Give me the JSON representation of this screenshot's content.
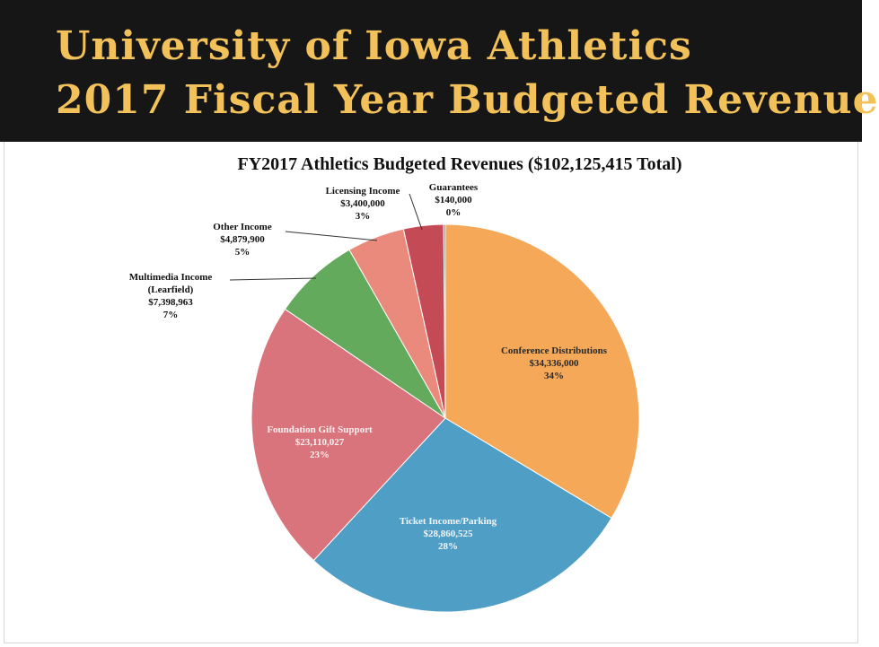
{
  "banner": {
    "line1": "University of Iowa Athletics",
    "line2": "2017 Fiscal Year Budgeted Revenue"
  },
  "chart_data": {
    "type": "pie",
    "title": "FY2017 Athletics Budgeted Revenues ($102,125,415 Total)",
    "slices": [
      {
        "label": "Conference Distributions",
        "amount": "$34,336,000",
        "percent": "34%",
        "value": 34336000,
        "color": "#f5a857",
        "placement": "inside"
      },
      {
        "label": "Ticket Income/Parking",
        "amount": "$28,860,525",
        "percent": "28%",
        "value": 28860525,
        "color": "#4f9ec6",
        "placement": "inside"
      },
      {
        "label": "Foundation Gift Support",
        "amount": "$23,110,027",
        "percent": "23%",
        "value": 23110027,
        "color": "#d9747c",
        "placement": "inside"
      },
      {
        "label": "Multimedia Income (Learfield)",
        "amount": "$7,398,963",
        "percent": "7%",
        "value": 7398963,
        "color": "#63aa5c",
        "placement": "outside"
      },
      {
        "label": "Other Income",
        "amount": "$4,879,900",
        "percent": "5%",
        "value": 4879900,
        "color": "#ea8a7c",
        "placement": "outside"
      },
      {
        "label": "Licensing Income",
        "amount": "$3,400,000",
        "percent": "3%",
        "value": 3400000,
        "color": "#c44a56",
        "placement": "outside"
      },
      {
        "label": "Guarantees",
        "amount": "$140,000",
        "percent": "0%",
        "value": 140000,
        "color": "#8a3a7a",
        "placement": "outside"
      }
    ]
  }
}
